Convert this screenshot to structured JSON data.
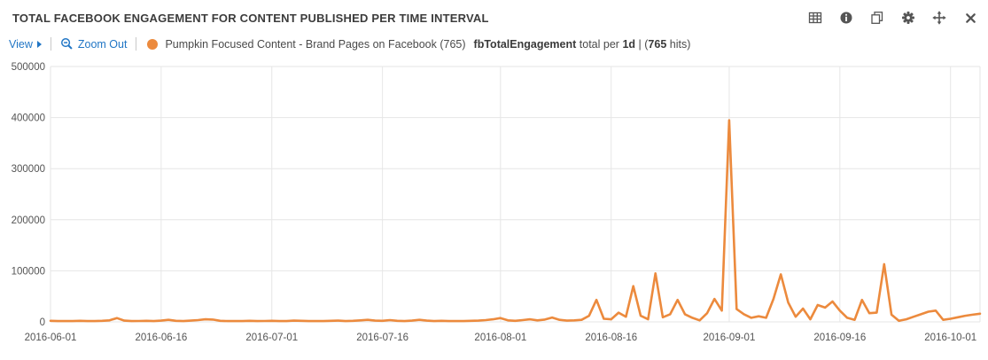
{
  "panel": {
    "title": "TOTAL FACEBOOK ENGAGEMENT FOR CONTENT PUBLISHED PER TIME INTERVAL"
  },
  "panel_icons": [
    "table-view-icon",
    "info-icon",
    "duplicate-icon",
    "settings-icon",
    "move-icon",
    "close-icon"
  ],
  "toolbar": {
    "view_label": "View",
    "zoom_out_label": "Zoom Out"
  },
  "legend": {
    "series": "Pumpkin Focused Content - Brand Pages on Facebook (765)",
    "field": "fbTotalEngagement",
    "aggregation": "total per",
    "interval": "1d",
    "separator": "|",
    "open_paren": "(",
    "hits": "765",
    "hits_suffix": " hits)"
  },
  "colors": {
    "series_orange": "#ec8a3d",
    "link_blue": "#2176c5",
    "grid": "#e6e6e6",
    "axis_text": "#545454",
    "icon_gray": "#555555"
  },
  "chart_data": {
    "type": "line",
    "title": "TOTAL FACEBOOK ENGAGEMENT FOR CONTENT PUBLISHED PER TIME INTERVAL",
    "xlabel": "",
    "ylabel": "",
    "ylim": [
      0,
      500000
    ],
    "yticks": [
      0,
      100000,
      200000,
      300000,
      400000,
      500000
    ],
    "xticks": [
      "2016-06-01",
      "2016-06-16",
      "2016-07-01",
      "2016-07-16",
      "2016-08-01",
      "2016-08-16",
      "2016-09-01",
      "2016-09-16",
      "2016-10-01"
    ],
    "grid": true,
    "legend_position": "top",
    "dates": [
      "2016-06-01",
      "2016-06-02",
      "2016-06-03",
      "2016-06-04",
      "2016-06-05",
      "2016-06-06",
      "2016-06-07",
      "2016-06-08",
      "2016-06-09",
      "2016-06-10",
      "2016-06-11",
      "2016-06-12",
      "2016-06-13",
      "2016-06-14",
      "2016-06-15",
      "2016-06-16",
      "2016-06-17",
      "2016-06-18",
      "2016-06-19",
      "2016-06-20",
      "2016-06-21",
      "2016-06-22",
      "2016-06-23",
      "2016-06-24",
      "2016-06-25",
      "2016-06-26",
      "2016-06-27",
      "2016-06-28",
      "2016-06-29",
      "2016-06-30",
      "2016-07-01",
      "2016-07-02",
      "2016-07-03",
      "2016-07-04",
      "2016-07-05",
      "2016-07-06",
      "2016-07-07",
      "2016-07-08",
      "2016-07-09",
      "2016-07-10",
      "2016-07-11",
      "2016-07-12",
      "2016-07-13",
      "2016-07-14",
      "2016-07-15",
      "2016-07-16",
      "2016-07-17",
      "2016-07-18",
      "2016-07-19",
      "2016-07-20",
      "2016-07-21",
      "2016-07-22",
      "2016-07-23",
      "2016-07-24",
      "2016-07-25",
      "2016-07-26",
      "2016-07-27",
      "2016-07-28",
      "2016-07-29",
      "2016-07-30",
      "2016-07-31",
      "2016-08-01",
      "2016-08-02",
      "2016-08-03",
      "2016-08-04",
      "2016-08-05",
      "2016-08-06",
      "2016-08-07",
      "2016-08-08",
      "2016-08-09",
      "2016-08-10",
      "2016-08-11",
      "2016-08-12",
      "2016-08-13",
      "2016-08-14",
      "2016-08-15",
      "2016-08-16",
      "2016-08-17",
      "2016-08-18",
      "2016-08-19",
      "2016-08-20",
      "2016-08-21",
      "2016-08-22",
      "2016-08-23",
      "2016-08-24",
      "2016-08-25",
      "2016-08-26",
      "2016-08-27",
      "2016-08-28",
      "2016-08-29",
      "2016-08-30",
      "2016-08-31",
      "2016-09-01",
      "2016-09-02",
      "2016-09-03",
      "2016-09-04",
      "2016-09-05",
      "2016-09-06",
      "2016-09-07",
      "2016-09-08",
      "2016-09-09",
      "2016-09-10",
      "2016-09-11",
      "2016-09-12",
      "2016-09-13",
      "2016-09-14",
      "2016-09-15",
      "2016-09-16",
      "2016-09-17",
      "2016-09-18",
      "2016-09-19",
      "2016-09-20",
      "2016-09-21",
      "2016-09-22",
      "2016-09-23",
      "2016-09-24",
      "2016-09-25",
      "2016-09-26",
      "2016-09-27",
      "2016-09-28",
      "2016-09-29",
      "2016-09-30",
      "2016-10-01",
      "2016-10-02",
      "2016-10-03",
      "2016-10-04",
      "2016-10-05"
    ],
    "series": [
      {
        "name": "Pumpkin Focused Content - Brand Pages on Facebook (765) fbTotalEngagement total per 1d",
        "color": "#ec8a3d",
        "values": [
          2000,
          1500,
          1800,
          1500,
          2000,
          1500,
          1500,
          2000,
          3000,
          7500,
          2500,
          1500,
          1800,
          2000,
          1500,
          2500,
          4000,
          2000,
          1500,
          2500,
          3500,
          5000,
          4500,
          2000,
          1500,
          1800,
          1500,
          2000,
          1500,
          1800,
          2000,
          1500,
          1500,
          2500,
          2000,
          1500,
          1800,
          1500,
          2000,
          2500,
          1500,
          2000,
          3000,
          4000,
          2500,
          2000,
          3500,
          2000,
          1500,
          2500,
          4000,
          2500,
          1500,
          2000,
          1500,
          1800,
          1500,
          2000,
          2500,
          3500,
          5000,
          7500,
          3000,
          2000,
          3500,
          5000,
          3000,
          4500,
          8500,
          4000,
          2500,
          3000,
          4000,
          12000,
          43000,
          6000,
          5000,
          18000,
          10000,
          70000,
          12000,
          5000,
          95000,
          9000,
          15000,
          43000,
          15000,
          8000,
          3000,
          17000,
          45000,
          22000,
          395000,
          25000,
          15000,
          8000,
          11000,
          8000,
          45000,
          93000,
          38000,
          10000,
          26000,
          5000,
          33000,
          28000,
          40000,
          22000,
          8000,
          4000,
          43000,
          17000,
          18000,
          113000,
          14000,
          2000,
          5000,
          10000,
          15000,
          20000,
          22000,
          4000,
          6000,
          9000,
          12000,
          14000,
          16000
        ]
      }
    ]
  }
}
